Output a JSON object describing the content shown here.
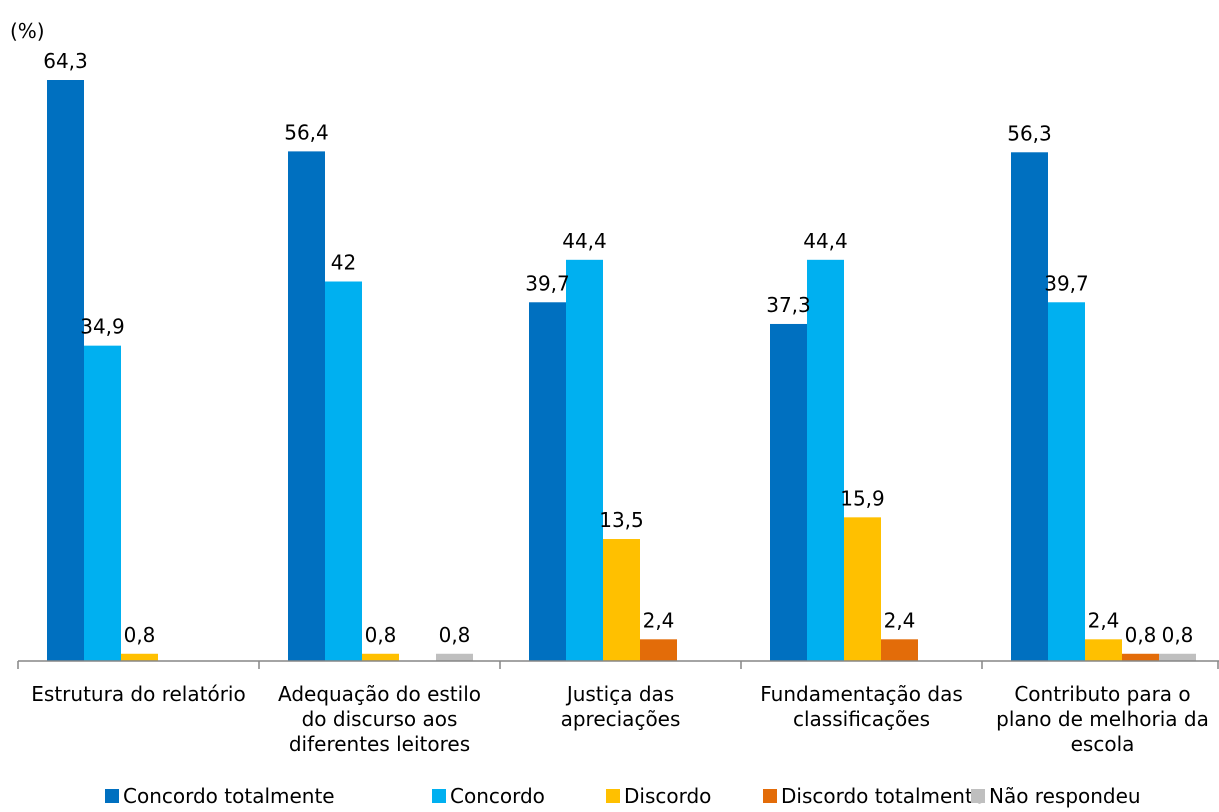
{
  "chart_data": {
    "type": "bar",
    "ylabel": "(%)",
    "ylim": [
      0,
      70
    ],
    "categories": [
      [
        "Estrutura do relatório"
      ],
      [
        "Adequação do estilo",
        "do discurso aos",
        "diferentes leitores"
      ],
      [
        "Justiça das",
        "apreciações"
      ],
      [
        "Fundamentação das",
        "classificações"
      ],
      [
        "Contributo para o",
        "plano de melhoria da",
        "escola"
      ]
    ],
    "series": [
      {
        "name": "Concordo totalmente",
        "color": "#0070C0",
        "values": [
          64.3,
          56.4,
          39.7,
          37.3,
          56.3
        ],
        "labels": [
          "64,3",
          "56,4",
          "39,7",
          "37,3",
          "56,3"
        ]
      },
      {
        "name": "Concordo",
        "color": "#00B0F0",
        "values": [
          34.9,
          42,
          44.4,
          44.4,
          39.7
        ],
        "labels": [
          "34,9",
          "42",
          "44,4",
          "44,4",
          "39,7"
        ]
      },
      {
        "name": "Discordo",
        "color": "#FFC000",
        "values": [
          0.8,
          0.8,
          13.5,
          15.9,
          2.4
        ],
        "labels": [
          "0,8",
          "0,8",
          "13,5",
          "15,9",
          "2,4"
        ]
      },
      {
        "name": "Discordo totalmente",
        "color": "#E36C09",
        "values": [
          null,
          null,
          2.4,
          2.4,
          0.8
        ],
        "labels": [
          null,
          null,
          "2,4",
          "2,4",
          "0,8"
        ]
      },
      {
        "name": "Não respondeu",
        "color": "#BFBFBF",
        "values": [
          null,
          0.8,
          null,
          null,
          0.8
        ],
        "labels": [
          null,
          "0,8",
          null,
          null,
          "0,8"
        ]
      }
    ],
    "legend_position": "bottom",
    "grid": false
  }
}
